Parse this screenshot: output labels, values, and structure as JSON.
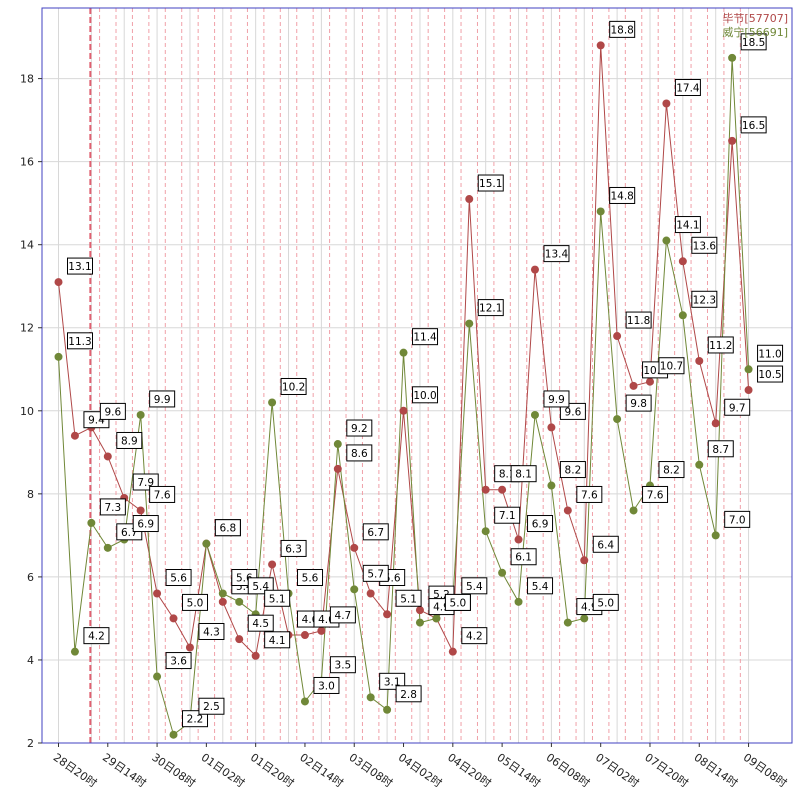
{
  "chart_data": {
    "type": "line",
    "x_tick_labels": [
      "28日20时",
      "29日14时",
      "30日08时",
      "01日02时",
      "01日20时",
      "02日14时",
      "03日08时",
      "04日02时",
      "04日20时",
      "05日14时",
      "06日08时",
      "07日02时",
      "07日20时",
      "08日14时",
      "09日08时"
    ],
    "ylim": [
      2,
      19.7
    ],
    "y_ticks": [
      2,
      4,
      6,
      8,
      10,
      12,
      14,
      16,
      18
    ],
    "grid": true,
    "legend_position": "top-right",
    "colors": {
      "axis": "#4040c0",
      "grid": "#d8d8d8",
      "vgrid_dashed": "#f0a0a8",
      "marker_line": "#e06070"
    },
    "series": [
      {
        "name": "毕节[57707]",
        "color": "#b04848",
        "values": [
          13.1,
          9.4,
          9.6,
          8.9,
          7.9,
          7.6,
          5.6,
          5.0,
          4.3,
          6.8,
          5.4,
          4.5,
          4.1,
          6.3,
          4.6,
          4.6,
          4.7,
          8.6,
          6.7,
          5.6,
          5.1,
          10.0,
          5.2,
          5.0,
          4.2,
          15.1,
          8.1,
          8.1,
          6.9,
          13.4,
          9.6,
          7.6,
          6.4,
          18.8,
          11.8,
          10.6,
          10.7,
          17.4,
          13.6,
          11.2,
          9.7,
          16.5,
          10.5
        ]
      },
      {
        "name": "威宁[56691]",
        "color": "#708838",
        "values": [
          11.3,
          4.2,
          7.3,
          6.7,
          6.9,
          9.9,
          3.6,
          2.2,
          2.5,
          6.8,
          5.6,
          5.4,
          5.1,
          10.2,
          5.6,
          3.0,
          3.5,
          9.2,
          5.7,
          3.1,
          2.8,
          11.4,
          4.9,
          5.0,
          5.4,
          12.1,
          7.1,
          6.1,
          5.4,
          9.9,
          8.2,
          4.9,
          5.0,
          14.8,
          9.8,
          7.6,
          8.2,
          14.1,
          12.3,
          8.7,
          7.0,
          18.5,
          11.0
        ]
      }
    ]
  }
}
